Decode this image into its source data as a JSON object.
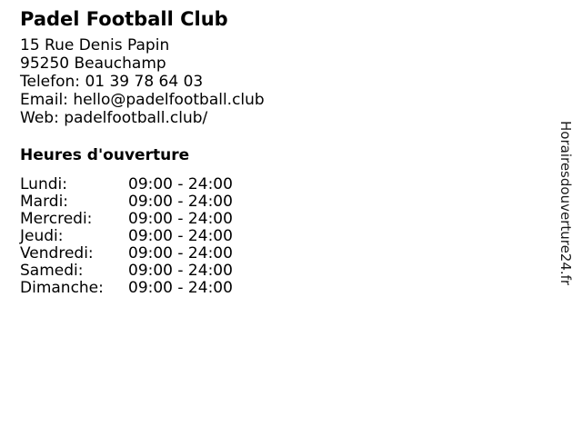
{
  "page": {
    "background_color": "#ffffff",
    "text_color": "#000000"
  },
  "business": {
    "name": "Padel Football Club",
    "address": [
      "15 Rue Denis Papin",
      "95250 Beauchamp"
    ],
    "contact": [
      {
        "label": "Telefon:",
        "value": "01 39 78 64 03"
      },
      {
        "label": "Email:",
        "value": "hello@padelfootball.club"
      },
      {
        "label": "Web:",
        "value": "padelfootball.club/"
      }
    ]
  },
  "opening_hours": {
    "heading": "Heures d'ouverture",
    "rows": [
      {
        "day": "Lundi:",
        "time": "09:00 - 24:00"
      },
      {
        "day": "Mardi:",
        "time": "09:00 - 24:00"
      },
      {
        "day": "Mercredi:",
        "time": "09:00 - 24:00"
      },
      {
        "day": "Jeudi:",
        "time": "09:00 - 24:00"
      },
      {
        "day": "Vendredi:",
        "time": "09:00 - 24:00"
      },
      {
        "day": "Samedi:",
        "time": "09:00 - 24:00"
      },
      {
        "day": "Dimanche:",
        "time": "09:00 - 24:00"
      }
    ]
  },
  "watermark": {
    "site_name": "Horairesdouverture24.fr"
  }
}
